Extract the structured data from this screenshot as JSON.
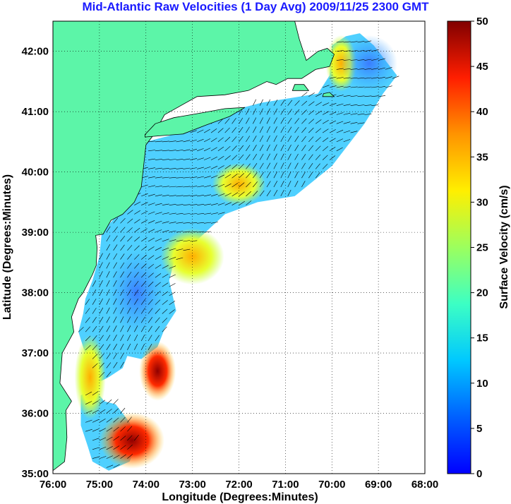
{
  "title": "Mid-Atlantic Raw Velocities (1 Day Avg) 2009/11/25 2300 GMT",
  "map": {
    "xlabel": "Longitude (Degrees:Minutes)",
    "ylabel": "Latitude (Degrees:Minutes)",
    "lon_range": [
      -76,
      -68
    ],
    "lat_range": [
      35,
      42.5
    ],
    "lon_ticks": [
      {
        "value": -76,
        "label": "76:00"
      },
      {
        "value": -75,
        "label": "75:00"
      },
      {
        "value": -74,
        "label": "74:00"
      },
      {
        "value": -73,
        "label": "73:00"
      },
      {
        "value": -72,
        "label": "72:00"
      },
      {
        "value": -71,
        "label": "71:00"
      },
      {
        "value": -70,
        "label": "70:00"
      },
      {
        "value": -69,
        "label": "69:00"
      },
      {
        "value": -68,
        "label": "68:00"
      }
    ],
    "lat_ticks": [
      {
        "value": 35,
        "label": "35:00"
      },
      {
        "value": 36,
        "label": "36:00"
      },
      {
        "value": 37,
        "label": "37:00"
      },
      {
        "value": 38,
        "label": "38:00"
      },
      {
        "value": 39,
        "label": "39:00"
      },
      {
        "value": 40,
        "label": "40:00"
      },
      {
        "value": 41,
        "label": "41:00"
      },
      {
        "value": 42,
        "label": "42:00"
      }
    ],
    "land_color": "#5cf5a8",
    "grid": "dotted"
  },
  "colorbar": {
    "label": "Surface Velocity (cm/s)",
    "range": [
      0,
      50
    ],
    "ticks": [
      "0",
      "5",
      "10",
      "15",
      "20",
      "25",
      "30",
      "35",
      "40",
      "45",
      "50"
    ],
    "colormap": "jet"
  },
  "features": {
    "land": [
      {
        "name": "mainland",
        "points": [
          [
            -76,
            35.05
          ],
          [
            -75.75,
            35.2
          ],
          [
            -75.7,
            35.6
          ],
          [
            -75.72,
            36.05
          ],
          [
            -75.6,
            36.2
          ],
          [
            -75.85,
            36.5
          ],
          [
            -75.8,
            37.0
          ],
          [
            -75.55,
            37.35
          ],
          [
            -75.6,
            37.6
          ],
          [
            -75.45,
            37.9
          ],
          [
            -75.35,
            38.0
          ],
          [
            -75.15,
            38.3
          ],
          [
            -75.07,
            38.45
          ],
          [
            -75.05,
            38.75
          ],
          [
            -75.08,
            38.95
          ],
          [
            -74.92,
            38.97
          ],
          [
            -74.75,
            39.2
          ],
          [
            -74.5,
            39.3
          ],
          [
            -74.25,
            39.5
          ],
          [
            -74.1,
            39.75
          ],
          [
            -74.05,
            40.1
          ],
          [
            -74.0,
            40.45
          ],
          [
            -73.85,
            40.6
          ],
          [
            -73.6,
            40.95
          ],
          [
            -72.9,
            41.25
          ],
          [
            -72.3,
            41.28
          ],
          [
            -71.8,
            41.35
          ],
          [
            -71.4,
            41.5
          ],
          [
            -71.2,
            41.45
          ],
          [
            -70.95,
            41.55
          ],
          [
            -70.65,
            41.55
          ],
          [
            -70.35,
            41.7
          ],
          [
            -70.05,
            41.75
          ],
          [
            -69.95,
            41.95
          ],
          [
            -70.1,
            42.05
          ],
          [
            -70.3,
            42.0
          ],
          [
            -70.55,
            41.85
          ],
          [
            -70.7,
            42.2
          ],
          [
            -70.8,
            42.5
          ],
          [
            -76,
            42.5
          ]
        ]
      },
      {
        "name": "long-island",
        "points": [
          [
            -74.02,
            40.58
          ],
          [
            -73.7,
            40.6
          ],
          [
            -73.2,
            40.63
          ],
          [
            -72.7,
            40.78
          ],
          [
            -72.2,
            40.92
          ],
          [
            -71.87,
            41.07
          ],
          [
            -72.3,
            41.05
          ],
          [
            -72.8,
            40.98
          ],
          [
            -73.4,
            40.9
          ],
          [
            -73.8,
            40.8
          ],
          [
            -74.02,
            40.62
          ]
        ]
      },
      {
        "name": "marthas-vineyard",
        "points": [
          [
            -70.85,
            41.35
          ],
          [
            -70.5,
            41.35
          ],
          [
            -70.6,
            41.45
          ],
          [
            -70.8,
            41.45
          ]
        ]
      },
      {
        "name": "nantucket",
        "points": [
          [
            -70.2,
            41.25
          ],
          [
            -69.95,
            41.25
          ],
          [
            -70.05,
            41.32
          ],
          [
            -70.18,
            41.3
          ]
        ]
      }
    ],
    "coverage": [
      {
        "region": "north",
        "points": [
          [
            -74.1,
            40.15
          ],
          [
            -74.0,
            40.5
          ],
          [
            -73.5,
            40.6
          ],
          [
            -72.8,
            40.85
          ],
          [
            -72.0,
            41.05
          ],
          [
            -71.5,
            41.15
          ],
          [
            -70.3,
            41.3
          ],
          [
            -70.05,
            41.6
          ],
          [
            -70.0,
            42.1
          ],
          [
            -69.7,
            42.25
          ],
          [
            -69.4,
            42.3
          ],
          [
            -69.1,
            42.1
          ],
          [
            -68.6,
            41.6
          ],
          [
            -68.9,
            41.3
          ],
          [
            -69.3,
            40.8
          ],
          [
            -70.0,
            40.1
          ],
          [
            -70.8,
            39.6
          ],
          [
            -71.6,
            39.5
          ],
          [
            -72.3,
            39.3
          ],
          [
            -73.0,
            38.8
          ],
          [
            -73.4,
            38.5
          ],
          [
            -73.5,
            38.2
          ],
          [
            -73.35,
            37.7
          ],
          [
            -73.6,
            37.4
          ],
          [
            -73.75,
            37.1
          ],
          [
            -74.1,
            36.9
          ],
          [
            -74.4,
            36.95
          ],
          [
            -74.5,
            36.75
          ],
          [
            -74.8,
            36.6
          ],
          [
            -75.05,
            36.5
          ],
          [
            -75.2,
            36.75
          ],
          [
            -75.35,
            37.1
          ],
          [
            -75.45,
            37.35
          ],
          [
            -75.35,
            37.65
          ],
          [
            -75.3,
            37.9
          ],
          [
            -75.15,
            38.2
          ],
          [
            -75.0,
            38.6
          ],
          [
            -74.95,
            39.0
          ],
          [
            -74.6,
            39.3
          ],
          [
            -74.3,
            39.55
          ],
          [
            -74.15,
            39.85
          ]
        ]
      },
      {
        "region": "south",
        "points": [
          [
            -75.4,
            36.3
          ],
          [
            -75.1,
            36.4
          ],
          [
            -74.9,
            36.2
          ],
          [
            -74.65,
            36.15
          ],
          [
            -74.35,
            35.85
          ],
          [
            -74.2,
            35.5
          ],
          [
            -74.35,
            35.2
          ],
          [
            -74.8,
            35.05
          ],
          [
            -75.15,
            35.2
          ],
          [
            -75.25,
            35.45
          ],
          [
            -75.4,
            35.8
          ]
        ]
      }
    ]
  }
}
